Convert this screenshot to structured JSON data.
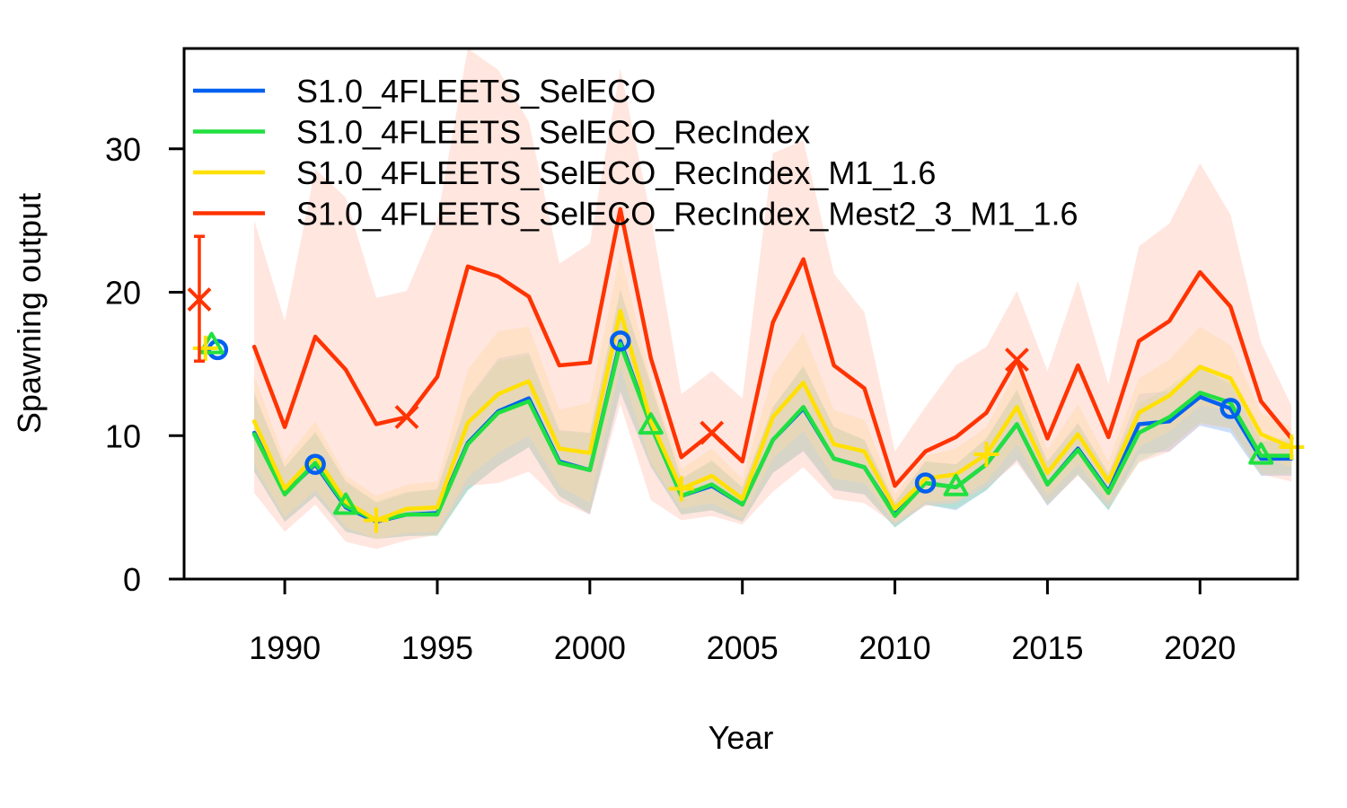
{
  "chart_data": {
    "type": "line",
    "xlabel": "Year",
    "ylabel": "Spawning output",
    "xlim": [
      1986.7,
      2023.2
    ],
    "ylim": [
      0,
      37
    ],
    "x_ticks": [
      1990,
      1995,
      2000,
      2005,
      2010,
      2015,
      2020
    ],
    "y_ticks": [
      0,
      10,
      20,
      30
    ],
    "legend_position": "top-left",
    "series": [
      {
        "name": "S1.0_4FLEETS_SelECO",
        "color": "#0060F0",
        "band_color": "#7FB0F0",
        "marker": "circle",
        "marker_years": [
          1991,
          2001,
          2011,
          2021
        ],
        "virgin": {
          "x": 1987.8,
          "y": 16.0
        },
        "years": [
          1989,
          1990,
          1991,
          1992,
          1993,
          1994,
          1995,
          1996,
          1997,
          1998,
          1999,
          2000,
          2001,
          2002,
          2003,
          2004,
          2005,
          2006,
          2007,
          2008,
          2009,
          2010,
          2011,
          2012,
          2013,
          2014,
          2015,
          2016,
          2017,
          2018,
          2019,
          2020,
          2021,
          2022,
          2023
        ],
        "values": [
          10.2,
          6.0,
          8.0,
          5.0,
          4.0,
          4.5,
          4.6,
          9.5,
          11.7,
          12.6,
          8.2,
          7.6,
          16.6,
          10.7,
          5.8,
          6.5,
          5.2,
          9.7,
          11.9,
          8.4,
          7.8,
          4.5,
          6.7,
          6.4,
          8.0,
          10.8,
          6.6,
          9.1,
          6.1,
          10.8,
          11.0,
          12.7,
          11.9,
          8.4,
          8.4
        ],
        "lower": [
          7.5,
          4.0,
          5.8,
          3.3,
          2.8,
          3.0,
          3.1,
          6.2,
          7.9,
          9.2,
          5.8,
          4.5,
          13.0,
          7.8,
          4.5,
          4.8,
          4.0,
          7.4,
          8.9,
          6.2,
          5.9,
          3.6,
          5.2,
          4.8,
          6.2,
          8.3,
          5.1,
          7.3,
          4.8,
          8.7,
          8.9,
          10.7,
          10.2,
          7.2,
          7.2
        ],
        "upper": [
          13.0,
          7.8,
          10.2,
          6.8,
          5.3,
          6.0,
          6.3,
          12.6,
          15.4,
          15.8,
          10.4,
          10.2,
          20.2,
          13.6,
          7.0,
          8.2,
          6.4,
          12.0,
          14.8,
          10.6,
          9.7,
          5.4,
          8.2,
          8.0,
          9.8,
          13.2,
          8.2,
          10.9,
          7.4,
          12.9,
          13.1,
          14.7,
          13.6,
          9.6,
          9.6
        ]
      },
      {
        "name": "S1.0_4FLEETS_SelECO_RecIndex",
        "color": "#20E040",
        "band_color": "#90E0A0",
        "marker": "triangle",
        "marker_years": [
          1992,
          2002,
          2012,
          2022
        ],
        "virgin": {
          "x": 1987.6,
          "y": 16.3
        },
        "years": [
          1989,
          1990,
          1991,
          1992,
          1993,
          1994,
          1995,
          1996,
          1997,
          1998,
          1999,
          2000,
          2001,
          2002,
          2003,
          2004,
          2005,
          2006,
          2007,
          2008,
          2009,
          2010,
          2011,
          2012,
          2013,
          2014,
          2015,
          2016,
          2017,
          2018,
          2019,
          2020,
          2021,
          2022,
          2023
        ],
        "values": [
          10.1,
          5.9,
          8.1,
          5.1,
          4.1,
          4.5,
          4.5,
          9.4,
          11.6,
          12.4,
          8.1,
          7.6,
          16.4,
          10.7,
          5.8,
          6.6,
          5.2,
          9.7,
          12.0,
          8.4,
          7.8,
          4.4,
          6.7,
          6.4,
          8.0,
          10.8,
          6.6,
          9.0,
          6.0,
          10.2,
          11.3,
          13.0,
          12.3,
          8.6,
          8.6
        ],
        "lower": [
          7.5,
          4.0,
          5.8,
          3.3,
          2.8,
          3.0,
          3.0,
          6.2,
          7.9,
          9.2,
          5.8,
          4.6,
          13.2,
          7.9,
          4.5,
          4.8,
          4.0,
          7.4,
          9.0,
          6.3,
          5.9,
          3.6,
          5.2,
          4.9,
          6.2,
          8.4,
          5.2,
          7.3,
          4.8,
          8.2,
          9.2,
          10.9,
          10.5,
          7.3,
          7.3
        ],
        "upper": [
          12.8,
          7.8,
          10.3,
          6.8,
          5.4,
          6.1,
          6.2,
          12.5,
          15.2,
          15.6,
          10.3,
          10.2,
          20.0,
          13.5,
          7.0,
          8.3,
          6.4,
          12.0,
          14.9,
          10.6,
          9.7,
          5.3,
          8.2,
          8.0,
          9.8,
          13.2,
          8.2,
          10.8,
          7.3,
          12.2,
          13.4,
          15.0,
          14.0,
          9.8,
          9.8
        ]
      },
      {
        "name": "S1.0_4FLEETS_SelECO_RecIndex_M1_1.6",
        "color": "#FFE000",
        "band_color": "#FFE890",
        "marker": "plus",
        "marker_years": [
          1993,
          2003,
          2013,
          2023
        ],
        "virgin": {
          "x": 1987.4,
          "y": 16.1
        },
        "years": [
          1989,
          1990,
          1991,
          1992,
          1993,
          1994,
          1995,
          1996,
          1997,
          1998,
          1999,
          2000,
          2001,
          2002,
          2003,
          2004,
          2005,
          2006,
          2007,
          2008,
          2009,
          2010,
          2011,
          2012,
          2013,
          2014,
          2015,
          2016,
          2017,
          2018,
          2019,
          2020,
          2021,
          2022,
          2023
        ],
        "values": [
          11.0,
          6.3,
          8.6,
          5.4,
          4.1,
          4.9,
          5.0,
          10.9,
          12.9,
          13.8,
          9.1,
          8.8,
          18.7,
          11.0,
          6.3,
          7.2,
          5.6,
          11.3,
          13.7,
          9.4,
          8.9,
          4.9,
          7.0,
          7.3,
          8.7,
          12.0,
          7.4,
          10.1,
          6.8,
          11.6,
          12.8,
          14.8,
          14.0,
          10.1,
          9.2
        ],
        "lower": [
          8.0,
          4.3,
          6.2,
          3.6,
          2.8,
          3.2,
          3.3,
          7.1,
          8.8,
          10.0,
          6.5,
          5.3,
          14.8,
          8.1,
          4.9,
          5.3,
          4.2,
          8.4,
          10.3,
          7.0,
          6.7,
          3.9,
          5.4,
          5.5,
          6.8,
          9.4,
          5.8,
          8.0,
          5.4,
          9.2,
          10.3,
          12.1,
          11.7,
          8.6,
          7.8
        ],
        "upper": [
          14.2,
          8.3,
          11.0,
          7.2,
          5.8,
          6.6,
          6.8,
          14.6,
          17.3,
          17.6,
          11.8,
          12.3,
          22.6,
          14.0,
          7.7,
          9.1,
          7.0,
          14.2,
          17.2,
          11.8,
          11.1,
          5.9,
          8.6,
          9.1,
          10.6,
          14.6,
          9.0,
          12.2,
          8.2,
          14.0,
          15.3,
          17.6,
          16.3,
          11.6,
          10.6
        ]
      },
      {
        "name": "S1.0_4FLEETS_SelECO_RecIndex_Mest2_3_M1_1.6",
        "color": "#FF3300",
        "band_color": "#FFC8B8",
        "marker": "x",
        "marker_years": [
          1994,
          2004,
          2014
        ],
        "virgin": {
          "x": 1987.2,
          "y": 19.5,
          "lower": 15.2,
          "upper": 23.9
        },
        "years": [
          1989,
          1990,
          1991,
          1992,
          1993,
          1994,
          1995,
          1996,
          1997,
          1998,
          1999,
          2000,
          2001,
          2002,
          2003,
          2004,
          2005,
          2006,
          2007,
          2008,
          2009,
          2010,
          2011,
          2012,
          2013,
          2014,
          2015,
          2016,
          2017,
          2018,
          2019,
          2020,
          2021,
          2022,
          2023
        ],
        "values": [
          16.2,
          10.6,
          16.9,
          14.6,
          10.8,
          11.3,
          14.1,
          21.8,
          21.1,
          19.7,
          14.9,
          15.1,
          25.8,
          15.4,
          8.5,
          10.2,
          8.2,
          17.9,
          22.3,
          14.9,
          13.3,
          6.5,
          8.9,
          9.9,
          11.6,
          15.3,
          9.8,
          14.9,
          9.9,
          16.6,
          18.0,
          21.4,
          19.0,
          12.4,
          9.8
        ],
        "lower": [
          6.0,
          3.3,
          5.2,
          2.6,
          2.1,
          2.7,
          3.1,
          6.5,
          6.7,
          7.5,
          5.4,
          4.5,
          12.2,
          5.5,
          4.1,
          4.4,
          3.8,
          6.1,
          7.8,
          5.6,
          5.3,
          3.8,
          5.1,
          5.3,
          6.4,
          8.1,
          5.2,
          7.2,
          5.0,
          8.1,
          8.9,
          10.8,
          10.5,
          7.3,
          6.8
        ],
        "upper": [
          25.0,
          18.0,
          28.6,
          26.6,
          19.6,
          20.1,
          25.1,
          37.0,
          35.5,
          31.9,
          22.0,
          23.4,
          35.6,
          25.3,
          12.9,
          14.5,
          12.6,
          29.7,
          30.6,
          21.3,
          18.6,
          8.9,
          12.0,
          14.9,
          16.2,
          20.1,
          14.5,
          20.8,
          13.6,
          23.2,
          24.8,
          29.0,
          25.4,
          16.5,
          12.1
        ]
      }
    ]
  }
}
